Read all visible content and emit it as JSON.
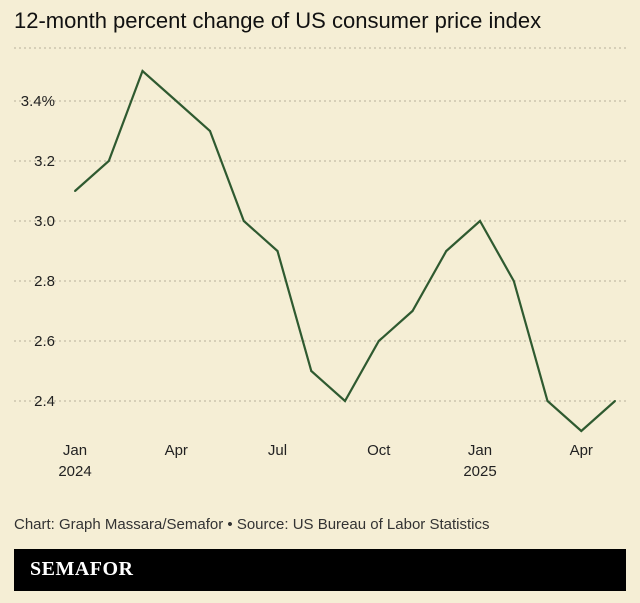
{
  "title": "12-month percent change of US consumer price index",
  "source": "Chart: Graph Massara/Semafor • Source: US Bureau of Labor Statistics",
  "brand": "SEMAFOR",
  "colors": {
    "background": "#f5eed5",
    "line": "#2f5a30",
    "grid": "#b7b09c",
    "brandbar": "#000000"
  },
  "chart_data": {
    "type": "line",
    "x": [
      "2024-01",
      "2024-02",
      "2024-03",
      "2024-04",
      "2024-05",
      "2024-06",
      "2024-07",
      "2024-08",
      "2024-09",
      "2024-10",
      "2024-11",
      "2024-12",
      "2025-01",
      "2025-02",
      "2025-03",
      "2025-04",
      "2025-05"
    ],
    "series": [
      {
        "values": [
          3.1,
          3.2,
          3.5,
          3.4,
          3.3,
          3.0,
          2.9,
          2.5,
          2.4,
          2.6,
          2.7,
          2.9,
          3.0,
          2.8,
          2.4,
          2.3,
          2.4
        ]
      }
    ],
    "ylim": [
      2.3,
      3.5
    ],
    "yticks": [
      2.4,
      2.6,
      2.8,
      3.0,
      3.2,
      3.4
    ],
    "ytick_labels": [
      "2.4",
      "2.6",
      "2.8",
      "3.0",
      "3.2",
      "3.4%"
    ],
    "xticks": [
      {
        "index": 0,
        "label": "Jan",
        "sublabel": "2024"
      },
      {
        "index": 3,
        "label": "Apr",
        "sublabel": ""
      },
      {
        "index": 6,
        "label": "Jul",
        "sublabel": ""
      },
      {
        "index": 9,
        "label": "Oct",
        "sublabel": ""
      },
      {
        "index": 12,
        "label": "Jan",
        "sublabel": "2025"
      },
      {
        "index": 15,
        "label": "Apr",
        "sublabel": ""
      }
    ],
    "grid": true,
    "xlabel": "",
    "ylabel": ""
  }
}
